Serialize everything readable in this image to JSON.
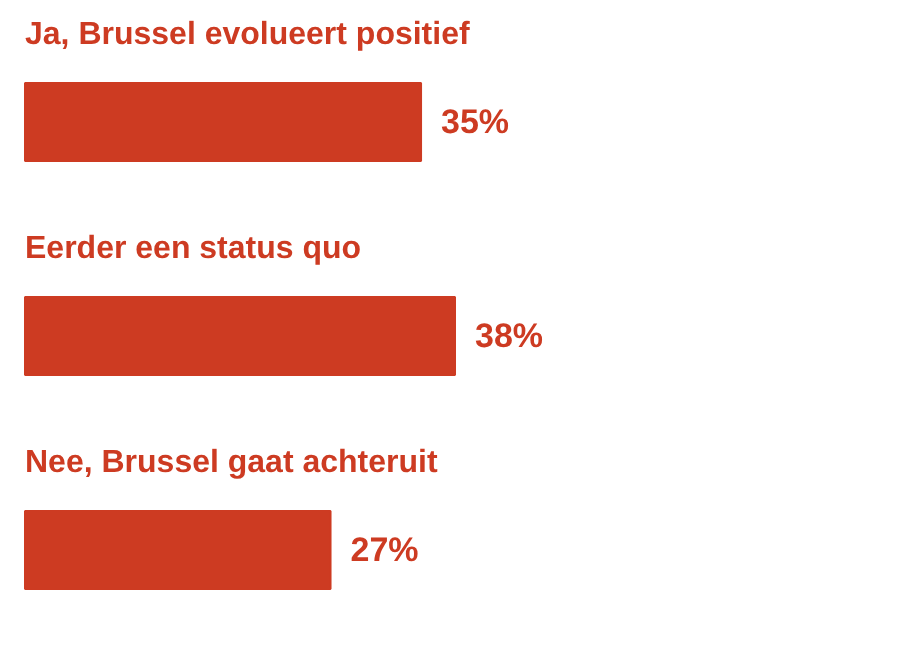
{
  "chart_data": {
    "type": "bar",
    "orientation": "horizontal",
    "categories": [
      "Ja, Brussel evolueert positief",
      "Eerder een status quo",
      "Nee, Brussel gaat achteruit"
    ],
    "values": [
      35,
      38,
      27
    ],
    "value_labels": [
      "35%",
      "38%",
      "27%"
    ],
    "color": "#cd3b22"
  }
}
